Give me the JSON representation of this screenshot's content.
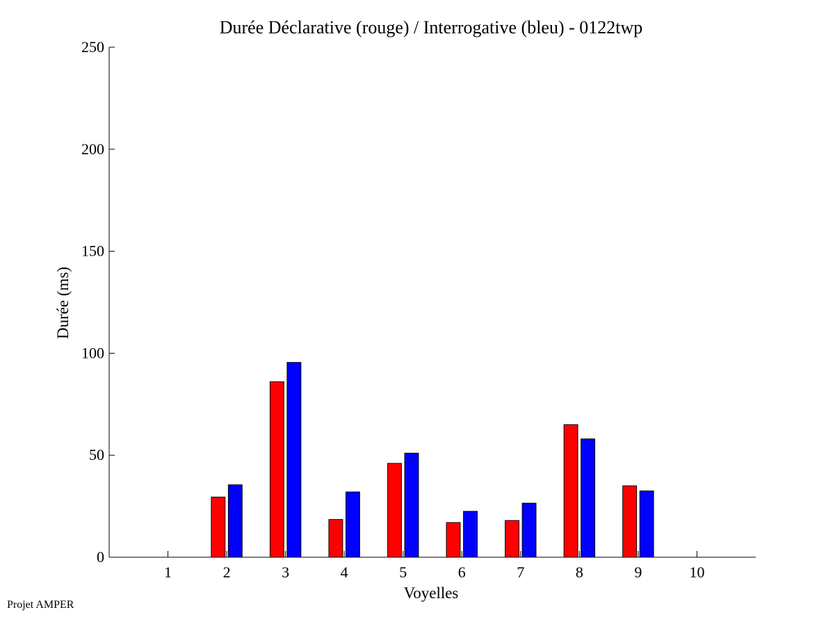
{
  "footer": "Projet AMPER",
  "chart_data": {
    "type": "bar",
    "title": "Durée Déclarative (rouge) / Interrogative (bleu) - 0122twp",
    "xlabel": "Voyelles",
    "ylabel": "Durée (ms)",
    "categories": [
      "1",
      "2",
      "3",
      "4",
      "5",
      "6",
      "7",
      "8",
      "9",
      "10"
    ],
    "ylim": [
      0,
      250
    ],
    "yticks": [
      "0",
      "50",
      "100",
      "150",
      "200",
      "250"
    ],
    "grid": false,
    "series": [
      {
        "color": "#ff0000",
        "values": [
          0,
          29.5,
          86,
          18.5,
          46,
          17,
          18,
          65,
          35,
          0
        ]
      },
      {
        "color": "#0000ff",
        "values": [
          0,
          35.5,
          95.5,
          32,
          51,
          22.5,
          26.5,
          58,
          32.5,
          0
        ]
      }
    ]
  }
}
